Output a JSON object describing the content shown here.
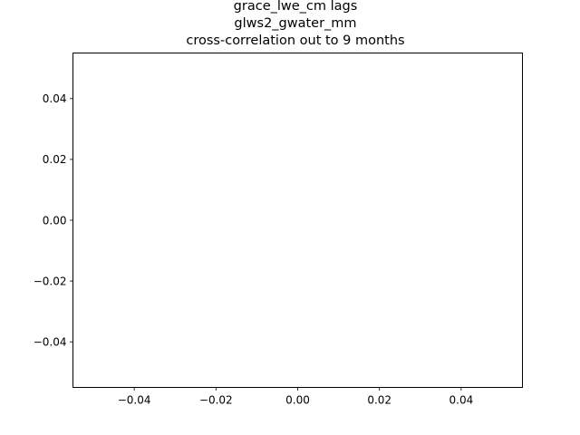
{
  "chart_data": {
    "type": "line",
    "title_lines": [
      "grace_lwe_cm lags",
      "glws2_gwater_mm",
      "cross-correlation out to 9 months"
    ],
    "xlabel": "",
    "ylabel": "",
    "xlim": [
      -0.055,
      0.055
    ],
    "ylim": [
      -0.055,
      0.055
    ],
    "x_ticks": [
      -0.04,
      -0.02,
      0.0,
      0.02,
      0.04
    ],
    "y_ticks": [
      -0.04,
      -0.02,
      0.0,
      0.02,
      0.04
    ],
    "x_tick_labels": [
      "−0.04",
      "−0.02",
      "0.00",
      "0.02",
      "0.04"
    ],
    "y_tick_labels": [
      "−0.04",
      "−0.02",
      "0.00",
      "0.02",
      "0.04"
    ],
    "grid": false,
    "series": []
  }
}
